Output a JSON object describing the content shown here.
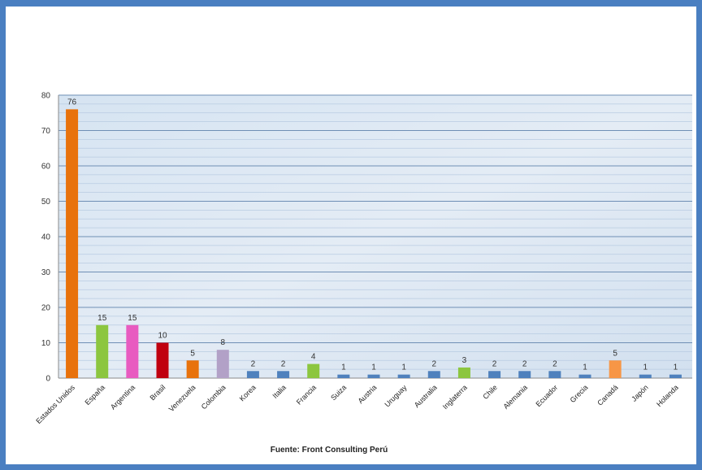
{
  "chart_data": {
    "type": "bar",
    "categories": [
      "Estados Unidos",
      "España",
      "Argentina",
      "Brasil",
      "Venezuela",
      "Colombia",
      "Korea",
      "Italia",
      "Francia",
      "Suiza",
      "Austria",
      "Uruguay",
      "Australia",
      "Inglaterra",
      "Chile",
      "Alemania",
      "Ecuador",
      "Grecia",
      "Canadá",
      "Japón",
      "Holanda"
    ],
    "values": [
      76,
      15,
      15,
      10,
      5,
      8,
      2,
      2,
      4,
      1,
      1,
      1,
      2,
      3,
      2,
      2,
      2,
      1,
      5,
      1,
      1
    ],
    "colors": [
      "#e8720c",
      "#8cc63f",
      "#e85bc0",
      "#c0000f",
      "#e8720c",
      "#b2a1c7",
      "#4f81bd",
      "#4f81bd",
      "#8cc63f",
      "#4f81bd",
      "#4f81bd",
      "#4f81bd",
      "#4f81bd",
      "#8cc63f",
      "#4f81bd",
      "#4f81bd",
      "#4f81bd",
      "#4f81bd",
      "#f79646",
      "#4f81bd",
      "#4f81bd"
    ],
    "ylim": [
      0,
      80
    ],
    "yticks": [
      0,
      10,
      20,
      30,
      40,
      50,
      60,
      70,
      80
    ],
    "data_labels": true,
    "legend": "none",
    "grid": true,
    "source": "Fuente: Front Consulting Perú"
  }
}
